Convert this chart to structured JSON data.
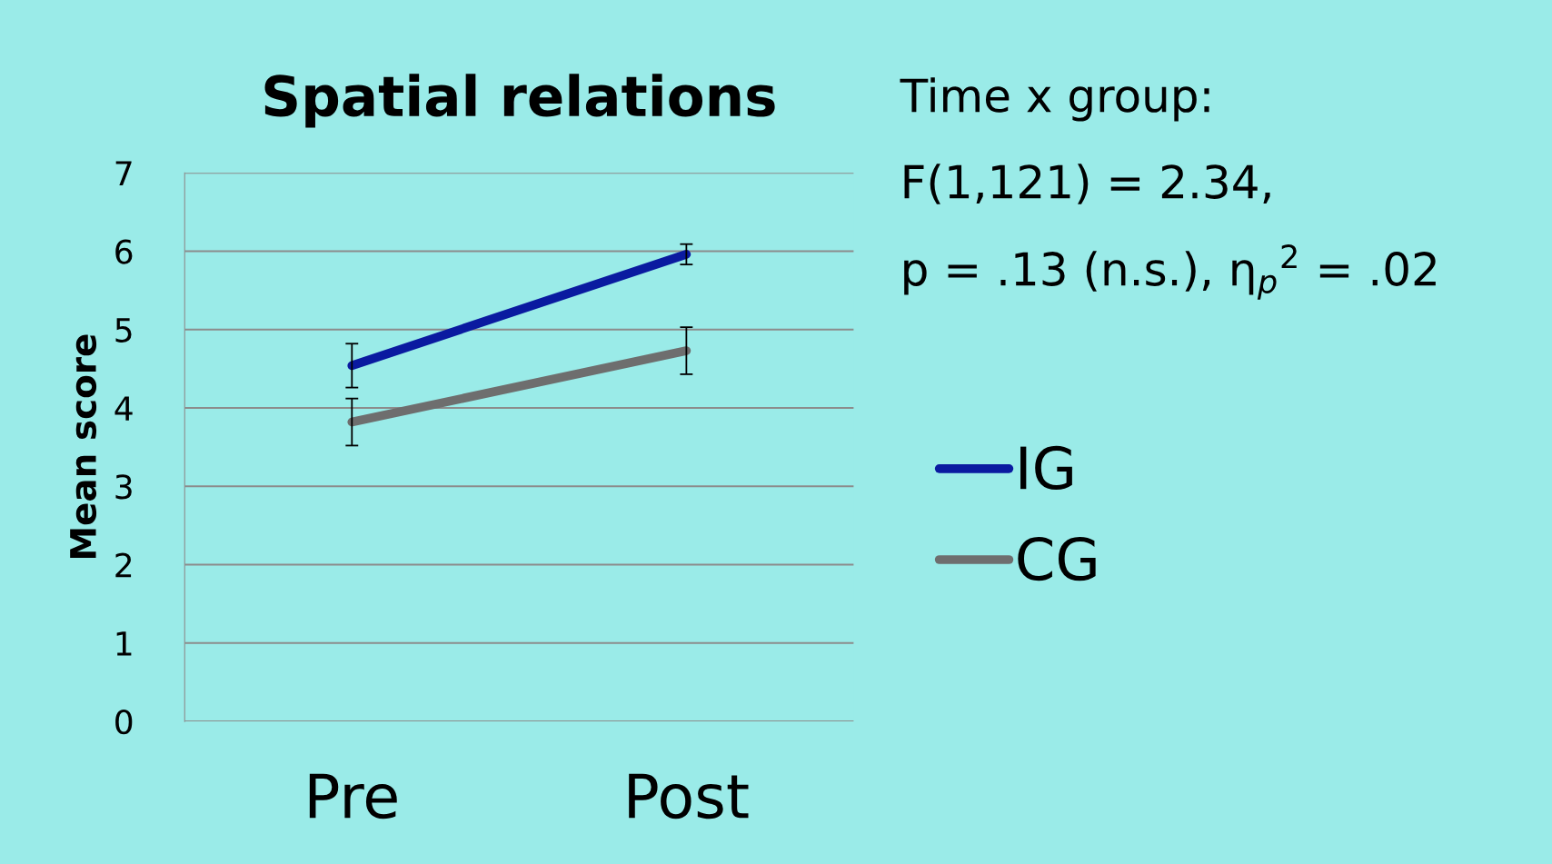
{
  "chart_data": {
    "type": "line",
    "title": "Spatial relations",
    "ylabel": "Mean score",
    "categories": [
      "Pre",
      "Post"
    ],
    "series": [
      {
        "name": "IG",
        "color": "#0a1aa0",
        "values": [
          4.54,
          5.96
        ],
        "errors": [
          0.28,
          0.13
        ]
      },
      {
        "name": "CG",
        "color": "#6e6e6e",
        "values": [
          3.82,
          4.73
        ],
        "errors": [
          0.3,
          0.3
        ]
      }
    ],
    "ylim": [
      0,
      7
    ],
    "yticks": [
      0,
      1,
      2,
      3,
      4,
      5,
      6,
      7
    ],
    "grid": "y",
    "legend": "right",
    "marker": "none",
    "annotations": [
      "Time x group:",
      "F(1,121) = 2.34,",
      "p = .13 (n.s.), η$_{p}$$^{2}$ = .02"
    ]
  }
}
